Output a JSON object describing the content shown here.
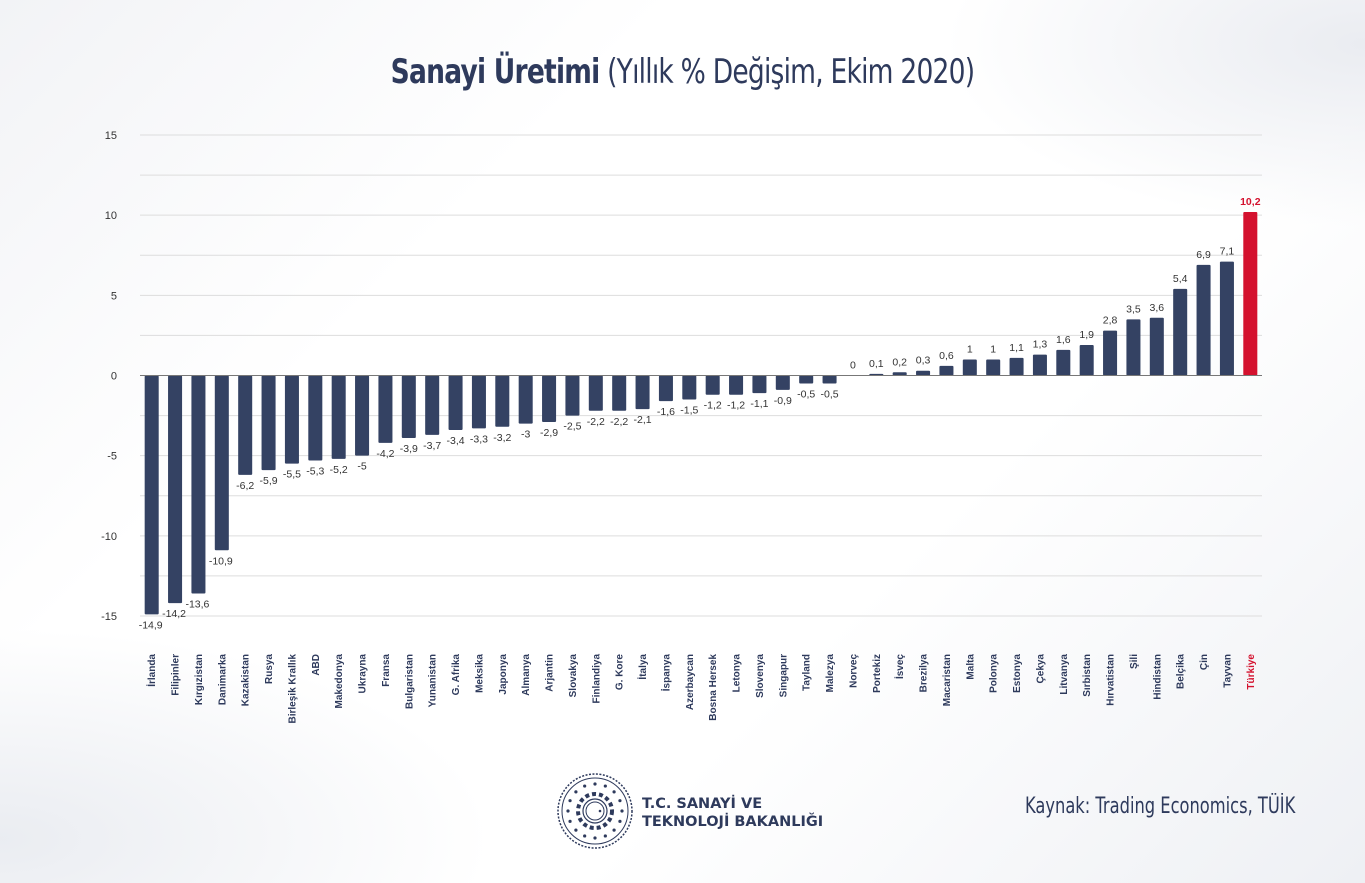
{
  "title": {
    "bold": "Sanayi Üretimi",
    "rest": " (Yıllık % Değişim, Ekim 2020)"
  },
  "colors": {
    "bar": "#344263",
    "highlight": "#d4112e",
    "grid": "#dddddd",
    "text": "#2e3a5c"
  },
  "chart_data": {
    "type": "bar",
    "title": "Sanayi Üretimi (Yıllık % Değişim, Ekim 2020)",
    "xlabel": "",
    "ylabel": "",
    "ylim": [
      -15,
      15
    ],
    "yticks": [
      15,
      10,
      5,
      0,
      -5,
      -10,
      -15
    ],
    "grid": true,
    "highlight_category": "Türkiye",
    "categories": [
      "İrlanda",
      "Filipinler",
      "Kırgızistan",
      "Danimarka",
      "Kazakistan",
      "Rusya",
      "Birleşik Krallık",
      "ABD",
      "Makedonya",
      "Ukrayna",
      "Fransa",
      "Bulgaristan",
      "Yunanistan",
      "G. Afrika",
      "Meksika",
      "Japonya",
      "Almanya",
      "Arjantin",
      "Slovakya",
      "Finlandiya",
      "G. Kore",
      "İtalya",
      "İspanya",
      "Azerbaycan",
      "Bosna Hersek",
      "Letonya",
      "Slovenya",
      "Singapur",
      "Tayland",
      "Malezya",
      "Norveç",
      "Portekiz",
      "İsveç",
      "Brezilya",
      "Macaristan",
      "Malta",
      "Polonya",
      "Estonya",
      "Çekya",
      "Litvanya",
      "Sırbistan",
      "Hırvatistan",
      "Şili",
      "Hindistan",
      "Belçika",
      "Çin",
      "Tayvan",
      "Türkiye"
    ],
    "values": [
      -14.9,
      -14.2,
      -13.6,
      -10.9,
      -6.2,
      -5.9,
      -5.5,
      -5.3,
      -5.2,
      -5,
      -4.2,
      -3.9,
      -3.7,
      -3.4,
      -3.3,
      -3.2,
      -3,
      -2.9,
      -2.5,
      -2.2,
      -2.2,
      -2.1,
      -1.6,
      -1.5,
      -1.2,
      -1.2,
      -1.1,
      -0.9,
      -0.5,
      -0.5,
      0,
      0.1,
      0.2,
      0.3,
      0.6,
      1,
      1,
      1.1,
      1.3,
      1.6,
      1.9,
      2.8,
      3.5,
      3.6,
      5.4,
      6.9,
      7.1,
      10.2
    ],
    "value_labels": [
      "-14,9",
      "-14,2",
      "-13,6",
      "-10,9",
      "-6,2",
      "-5,9",
      "-5,5",
      "-5,3",
      "-5,2",
      "-5",
      "-4,2",
      "-3,9",
      "-3,7",
      "-3,4",
      "-3,3",
      "-3,2",
      "-3",
      "-2,9",
      "-2,5",
      "-2,2",
      "-2,2",
      "-2,1",
      "-1,6",
      "-1,5",
      "-1,2",
      "-1,2",
      "-1,1",
      "-0,9",
      "-0,5",
      "-0,5",
      "0",
      "0,1",
      "0,2",
      "0,3",
      "0,6",
      "1",
      "1",
      "1,1",
      "1,3",
      "1,6",
      "1,9",
      "2,8",
      "3,5",
      "3,6",
      "5,4",
      "6,9",
      "7,1",
      "10,2"
    ]
  },
  "footer": {
    "org_line1": "T.C. SANAYİ VE",
    "org_line2": "TEKNOLOJİ BAKANLIĞI",
    "source": "Kaynak: Trading Economics, TÜİK"
  }
}
